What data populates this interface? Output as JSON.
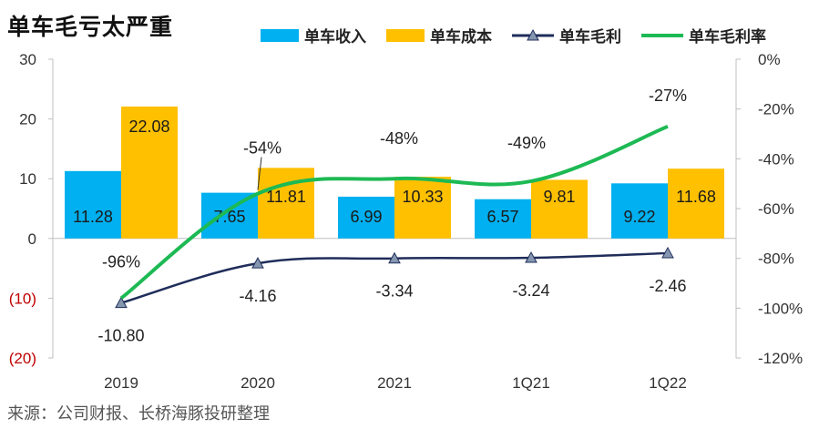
{
  "title": "单车毛亏太严重",
  "source": "来源：公司财报、长桥海豚投研整理",
  "legend": {
    "revenue": "单车收入",
    "cost": "单车成本",
    "gross_profit": "单车毛利",
    "gross_margin": "单车毛利率"
  },
  "colors": {
    "revenue": "#00b0f0",
    "cost": "#ffc000",
    "gross_profit": "#1f2d5a",
    "gross_margin": "#1db954",
    "neg_tick": "#c00000"
  },
  "chart_data": {
    "type": "bar",
    "categories": [
      "2019",
      "2020",
      "2021",
      "1Q21",
      "1Q22"
    ],
    "series": [
      {
        "name": "单车收入",
        "type": "bar",
        "axis": "left",
        "values": [
          11.28,
          7.65,
          6.99,
          6.57,
          9.22
        ],
        "labels": [
          "11.28",
          "7.65",
          "6.99",
          "6.57",
          "9.22"
        ]
      },
      {
        "name": "单车成本",
        "type": "bar",
        "axis": "left",
        "values": [
          22.08,
          11.81,
          10.33,
          9.81,
          11.68
        ],
        "labels": [
          "22.08",
          "11.81",
          "10.33",
          "9.81",
          "11.68"
        ]
      },
      {
        "name": "单车毛利",
        "type": "line",
        "axis": "left",
        "values": [
          -10.8,
          -4.16,
          -3.34,
          -3.24,
          -2.46
        ],
        "labels": [
          "-10.80",
          "-4.16",
          "-3.34",
          "-3.24",
          "-2.46"
        ]
      },
      {
        "name": "单车毛利率",
        "type": "line",
        "axis": "right",
        "values": [
          -96,
          -54,
          -48,
          -49,
          -27
        ],
        "labels": [
          "-96%",
          "-54%",
          "-48%",
          "-49%",
          "-27%"
        ]
      }
    ],
    "left_axis": {
      "ylim": [
        -20,
        30
      ],
      "ticks": [
        "30",
        "20",
        "10",
        "0",
        "(10)",
        "(20)"
      ],
      "tick_values": [
        30,
        20,
        10,
        0,
        -10,
        -20
      ]
    },
    "right_axis": {
      "ylim": [
        -120,
        0
      ],
      "ticks": [
        "0%",
        "-20%",
        "-40%",
        "-60%",
        "-80%",
        "-100%",
        "-120%"
      ],
      "tick_values": [
        0,
        -20,
        -40,
        -60,
        -80,
        -100,
        -120
      ]
    },
    "grid": false,
    "legend_position": "top"
  }
}
